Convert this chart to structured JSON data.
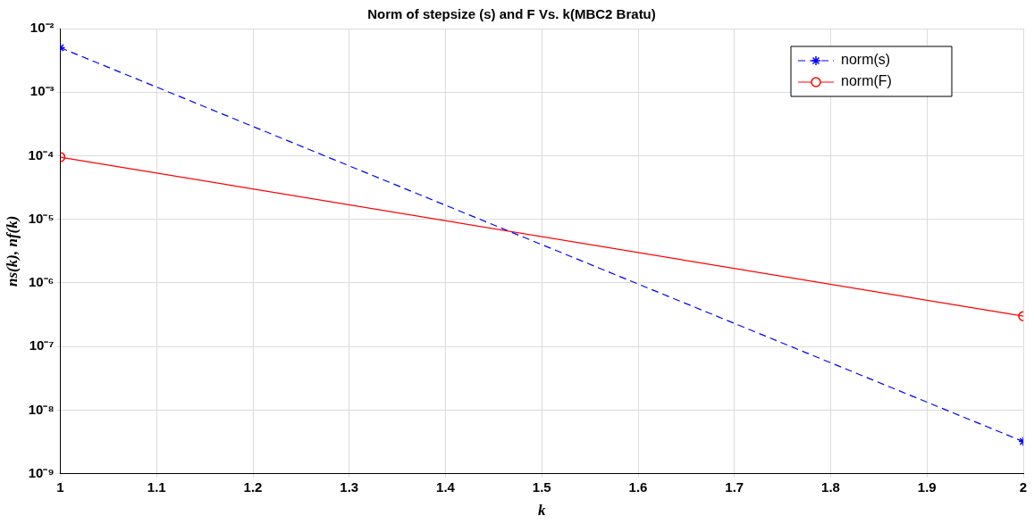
{
  "chart_data": {
    "type": "line",
    "title": "Norm of stepsize (s) and F Vs. k(MBC2 Bratu)",
    "xlabel": "k",
    "ylabel": "ns(k), nf(k)",
    "x": [
      1,
      2
    ],
    "series": [
      {
        "name": "norm(s)",
        "color": "#0000ff",
        "values": [
          0.005,
          3.2e-09
        ],
        "marker": "cross",
        "line_style": "dashed"
      },
      {
        "name": "norm(F)",
        "color": "#ff0000",
        "values": [
          9.5e-05,
          3e-07
        ],
        "marker": "circle",
        "line_style": "solid"
      }
    ],
    "xlim": [
      1,
      2
    ],
    "xticks": [
      1,
      1.1,
      1.2,
      1.3,
      1.4,
      1.5,
      1.6,
      1.7,
      1.8,
      1.9,
      2
    ],
    "ylim": [
      1e-09,
      0.01
    ],
    "yticks": [
      {
        "value": 1e-09,
        "label": "10⁻⁹"
      },
      {
        "value": 1e-08,
        "label": "10⁻⁸"
      },
      {
        "value": 1e-07,
        "label": "10⁻⁷"
      },
      {
        "value": 1e-06,
        "label": "10⁻⁶"
      },
      {
        "value": 1e-05,
        "label": "10⁻⁵"
      },
      {
        "value": 0.0001,
        "label": "10⁻⁴"
      },
      {
        "value": 0.001,
        "label": "10⁻³"
      },
      {
        "value": 0.01,
        "label": "10⁻²"
      }
    ],
    "log": true,
    "grid": true,
    "legend": "top right"
  }
}
